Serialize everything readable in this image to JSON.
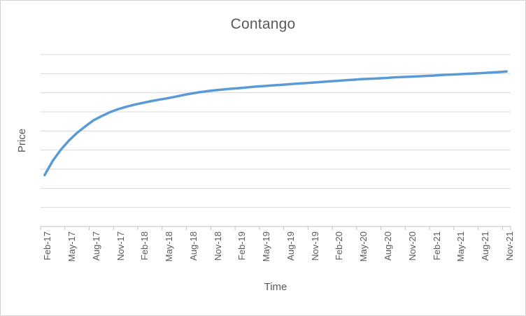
{
  "chart_data": {
    "type": "line",
    "title": "Contango",
    "xlabel": "Time",
    "ylabel": "Price",
    "x_tick_labels": [
      "Feb-17",
      "May-17",
      "Aug-17",
      "Nov-17",
      "Feb-18",
      "May-18",
      "Aug-18",
      "Nov-18",
      "Feb-19",
      "May-19",
      "Aug-19",
      "Nov-19",
      "Feb-20",
      "May-20",
      "Aug-20",
      "Nov-20",
      "Feb-21",
      "May-21",
      "Aug-21",
      "Nov-21"
    ],
    "label_every_n_points": 3,
    "values": [
      26.9,
      34.4,
      40.2,
      45.0,
      49.0,
      52.3,
      55.5,
      57.7,
      59.7,
      61.3,
      62.6,
      63.7,
      64.6,
      65.5,
      66.3,
      67.0,
      67.8,
      68.7,
      69.5,
      70.2,
      70.8,
      71.3,
      71.7,
      72.1,
      72.4,
      72.8,
      73.2,
      73.5,
      73.8,
      74.1,
      74.4,
      74.7,
      75.0,
      75.3,
      75.6,
      75.9,
      76.2,
      76.5,
      76.8,
      77.1,
      77.3,
      77.5,
      77.7,
      78.0,
      78.2,
      78.4,
      78.6,
      78.8,
      79.0,
      79.3,
      79.5,
      79.7,
      79.9,
      80.1,
      80.3,
      80.6,
      80.8,
      81.1
    ],
    "ylim": [
      0,
      90
    ],
    "y_gridline_step": 10,
    "y_tick_labels_visible": false,
    "legend": "none",
    "grid": "horizontal",
    "line_color": "#5B9BD5",
    "gridline_color": "#D9D9D9",
    "axis_color": "#BFBFBF",
    "text_color": "#595959"
  }
}
